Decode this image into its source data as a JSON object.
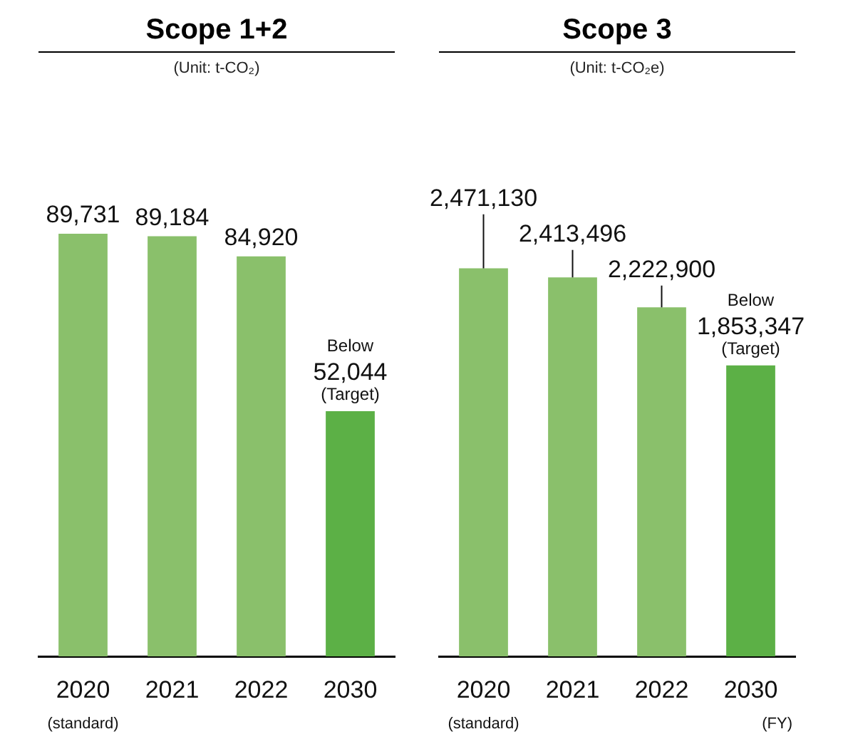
{
  "chart_data": [
    {
      "type": "bar",
      "title": "Scope 1+2",
      "subtitle": "(Unit: t-CO₂)",
      "categories": [
        "2020",
        "2021",
        "2022",
        "2030"
      ],
      "values": [
        89731,
        89184,
        84920,
        52044
      ],
      "colors": [
        "#8ac06b",
        "#8ac06b",
        "#8ac06b",
        "#5cb046"
      ],
      "value_labels": [
        "89,731",
        "89,184",
        "84,920",
        "52,044"
      ],
      "annotations": [
        "Below",
        "(Target)",
        "(standard)"
      ]
    },
    {
      "type": "bar",
      "title": "Scope 3",
      "subtitle": "(Unit: t-CO₂e)",
      "categories": [
        "2020",
        "2021",
        "2022",
        "2030"
      ],
      "values": [
        2471130,
        2413496,
        2222900,
        1853347
      ],
      "colors": [
        "#8ac06b",
        "#8ac06b",
        "#8ac06b",
        "#5cb046"
      ],
      "value_labels": [
        "2,471,130",
        "2,413,496",
        "2,222,900",
        "1,853,347"
      ],
      "annotations": [
        "Below",
        "(Target)",
        "(standard)",
        "(FY)"
      ]
    }
  ]
}
